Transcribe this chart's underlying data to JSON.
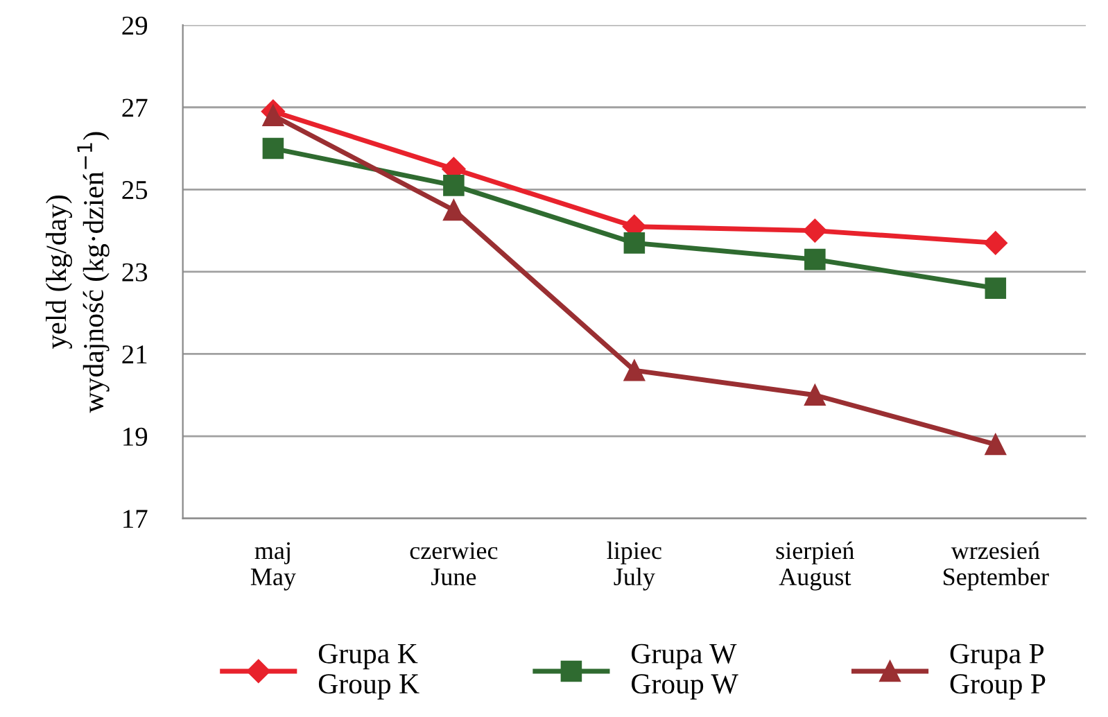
{
  "chart_data": {
    "type": "line",
    "ylabel": "yeld (kg/day)\nwydajność (kg·dzień$^{−1}$)",
    "categories": [
      "maj\nMay",
      "czerwiec\nJune",
      "lipiec\nJuly",
      "sierpień\nAugust",
      "wrzesień\nSeptember"
    ],
    "series": [
      {
        "name": "Grupa K\nGroup K",
        "color": "#e8222c",
        "marker": "diamond",
        "values": [
          26.9,
          25.5,
          24.1,
          24.0,
          23.7
        ]
      },
      {
        "name": "Grupa W\nGroup W",
        "color": "#2f6b30",
        "marker": "square",
        "values": [
          26.0,
          25.1,
          23.7,
          23.3,
          22.6
        ]
      },
      {
        "name": "Grupa P\nGroup P",
        "color": "#9a2f32",
        "marker": "triangle",
        "values": [
          26.8,
          24.5,
          20.6,
          20.0,
          18.8
        ]
      }
    ],
    "ylim": [
      17,
      29
    ],
    "yticks": [
      17,
      19,
      21,
      23,
      25,
      27,
      29
    ],
    "grid": "y",
    "legend": "bottom",
    "line_style": "solid"
  }
}
